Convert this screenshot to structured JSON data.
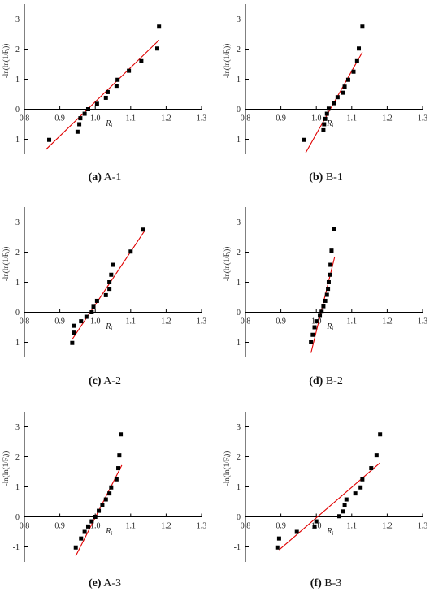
{
  "chart_data": [
    {
      "type": "scatter",
      "caption_letter": "(a)",
      "caption_text": " A-1",
      "xlabel": "R",
      "xlabel_sub": "i",
      "ylabel": "-ln(ln(1/Fᵢ))",
      "xlim": [
        0.8,
        1.3
      ],
      "ylim": [
        -1.5,
        3.5
      ],
      "xticks": [
        "0.8",
        "0.9",
        "1.0",
        "1.1",
        "1.2",
        "1.3"
      ],
      "yticks": [
        "-1",
        "0",
        "1",
        "2",
        "3"
      ],
      "points": [
        [
          0.87,
          -1.02
        ],
        [
          0.95,
          -0.75
        ],
        [
          0.955,
          -0.5
        ],
        [
          0.958,
          -0.3
        ],
        [
          0.97,
          -0.15
        ],
        [
          0.98,
          0.0
        ],
        [
          1.005,
          0.18
        ],
        [
          1.03,
          0.38
        ],
        [
          1.035,
          0.57
        ],
        [
          1.06,
          0.78
        ],
        [
          1.063,
          0.98
        ],
        [
          1.095,
          1.28
        ],
        [
          1.13,
          1.6
        ],
        [
          1.175,
          2.02
        ],
        [
          1.18,
          2.75
        ]
      ],
      "fit": [
        [
          0.86,
          -1.35
        ],
        [
          1.18,
          2.3
        ]
      ],
      "fit_color": "#e00000"
    },
    {
      "type": "scatter",
      "caption_letter": "(b)",
      "caption_text": " B-1",
      "xlabel": "R",
      "xlabel_sub": "i",
      "ylabel": "-ln(ln(1/Fᵢ))",
      "xlim": [
        0.8,
        1.3
      ],
      "ylim": [
        -1.5,
        3.5
      ],
      "xticks": [
        "0.8",
        "0.9",
        "1.0",
        "1.1",
        "1.2",
        "1.3"
      ],
      "yticks": [
        "-1",
        "0",
        "1",
        "2",
        "3"
      ],
      "points": [
        [
          0.965,
          -1.02
        ],
        [
          1.02,
          -0.7
        ],
        [
          1.022,
          -0.5
        ],
        [
          1.025,
          -0.32
        ],
        [
          1.03,
          -0.15
        ],
        [
          1.035,
          0.02
        ],
        [
          1.05,
          0.2
        ],
        [
          1.06,
          0.4
        ],
        [
          1.075,
          0.55
        ],
        [
          1.08,
          0.75
        ],
        [
          1.09,
          0.98
        ],
        [
          1.105,
          1.25
        ],
        [
          1.115,
          1.6
        ],
        [
          1.12,
          2.02
        ],
        [
          1.13,
          2.75
        ]
      ],
      "fit": [
        [
          0.97,
          -1.45
        ],
        [
          1.13,
          1.9
        ]
      ],
      "fit_color": "#e00000"
    },
    {
      "type": "scatter",
      "caption_letter": "(c)",
      "caption_text": " A-2",
      "xlabel": "R",
      "xlabel_sub": "i",
      "ylabel": "-ln(ln(1/Fᵢ))",
      "xlim": [
        0.8,
        1.3
      ],
      "ylim": [
        -1.5,
        3.5
      ],
      "xticks": [
        "0.8",
        "0.9",
        "1.0",
        "1.1",
        "1.2",
        "1.3"
      ],
      "yticks": [
        "-1",
        "0",
        "1",
        "2",
        "3"
      ],
      "points": [
        [
          0.935,
          -1.02
        ],
        [
          0.94,
          -0.68
        ],
        [
          0.94,
          -0.45
        ],
        [
          0.96,
          -0.3
        ],
        [
          0.975,
          -0.15
        ],
        [
          0.99,
          0.0
        ],
        [
          0.995,
          0.18
        ],
        [
          1.005,
          0.38
        ],
        [
          1.03,
          0.57
        ],
        [
          1.04,
          0.78
        ],
        [
          1.04,
          1.0
        ],
        [
          1.045,
          1.25
        ],
        [
          1.05,
          1.58
        ],
        [
          1.1,
          2.02
        ],
        [
          1.135,
          2.75
        ]
      ],
      "fit": [
        [
          0.935,
          -0.9
        ],
        [
          1.14,
          2.72
        ]
      ],
      "fit_color": "#e00000"
    },
    {
      "type": "scatter",
      "caption_letter": "(d)",
      "caption_text": " B-2",
      "xlabel": "R",
      "xlabel_sub": "i",
      "ylabel": "-ln(ln(1/Fᵢ))",
      "xlim": [
        0.8,
        1.3
      ],
      "ylim": [
        -1.5,
        3.5
      ],
      "xticks": [
        "0.8",
        "0.9",
        "1.0",
        "1.1",
        "1.2",
        "1.3"
      ],
      "yticks": [
        "-1",
        "0",
        "1",
        "2",
        "3"
      ],
      "points": [
        [
          0.985,
          -1.0
        ],
        [
          0.99,
          -0.75
        ],
        [
          0.995,
          -0.5
        ],
        [
          1.0,
          -0.3
        ],
        [
          1.01,
          -0.12
        ],
        [
          1.015,
          0.02
        ],
        [
          1.02,
          0.2
        ],
        [
          1.025,
          0.38
        ],
        [
          1.03,
          0.58
        ],
        [
          1.033,
          0.78
        ],
        [
          1.035,
          1.0
        ],
        [
          1.038,
          1.25
        ],
        [
          1.04,
          1.58
        ],
        [
          1.043,
          2.05
        ],
        [
          1.05,
          2.78
        ]
      ],
      "fit": [
        [
          0.985,
          -1.35
        ],
        [
          1.052,
          1.85
        ]
      ],
      "fit_color": "#e00000"
    },
    {
      "type": "scatter",
      "caption_letter": "(e)",
      "caption_text": " A-3",
      "xlabel": "R",
      "xlabel_sub": "i",
      "ylabel": "-ln(ln(1/Fᵢ))",
      "xlim": [
        0.8,
        1.3
      ],
      "ylim": [
        -1.5,
        3.5
      ],
      "xticks": [
        "0.8",
        "0.9",
        "1.0",
        "1.1",
        "1.2",
        "1.3"
      ],
      "yticks": [
        "-1",
        "0",
        "1",
        "2",
        "3"
      ],
      "points": [
        [
          0.945,
          -1.02
        ],
        [
          0.96,
          -0.72
        ],
        [
          0.97,
          -0.5
        ],
        [
          0.98,
          -0.32
        ],
        [
          0.99,
          -0.15
        ],
        [
          1.0,
          0.0
        ],
        [
          1.01,
          0.2
        ],
        [
          1.02,
          0.38
        ],
        [
          1.03,
          0.58
        ],
        [
          1.04,
          0.78
        ],
        [
          1.045,
          0.98
        ],
        [
          1.06,
          1.25
        ],
        [
          1.065,
          1.62
        ],
        [
          1.068,
          2.05
        ],
        [
          1.072,
          2.75
        ]
      ],
      "fit": [
        [
          0.945,
          -1.3
        ],
        [
          1.075,
          1.72
        ]
      ],
      "fit_color": "#e00000"
    },
    {
      "type": "scatter",
      "caption_letter": "(f)",
      "caption_text": " B-3",
      "xlabel": "R",
      "xlabel_sub": "i",
      "ylabel": "-ln(ln(1/Fᵢ))",
      "xlim": [
        0.8,
        1.3
      ],
      "ylim": [
        -1.5,
        3.5
      ],
      "xticks": [
        "0.8",
        "0.9",
        "1.0",
        "1.1",
        "1.2",
        "1.3"
      ],
      "yticks": [
        "-1",
        "0",
        "1",
        "2",
        "3"
      ],
      "points": [
        [
          0.89,
          -1.02
        ],
        [
          0.895,
          -0.72
        ],
        [
          0.945,
          -0.5
        ],
        [
          0.995,
          -0.32
        ],
        [
          1.0,
          -0.15
        ],
        [
          1.065,
          0.02
        ],
        [
          1.075,
          0.18
        ],
        [
          1.08,
          0.38
        ],
        [
          1.085,
          0.58
        ],
        [
          1.11,
          0.78
        ],
        [
          1.125,
          0.98
        ],
        [
          1.13,
          1.25
        ],
        [
          1.155,
          1.62
        ],
        [
          1.17,
          2.05
        ],
        [
          1.18,
          2.75
        ]
      ],
      "fit": [
        [
          0.895,
          -1.1
        ],
        [
          1.18,
          1.8
        ]
      ],
      "fit_color": "#e00000"
    }
  ]
}
